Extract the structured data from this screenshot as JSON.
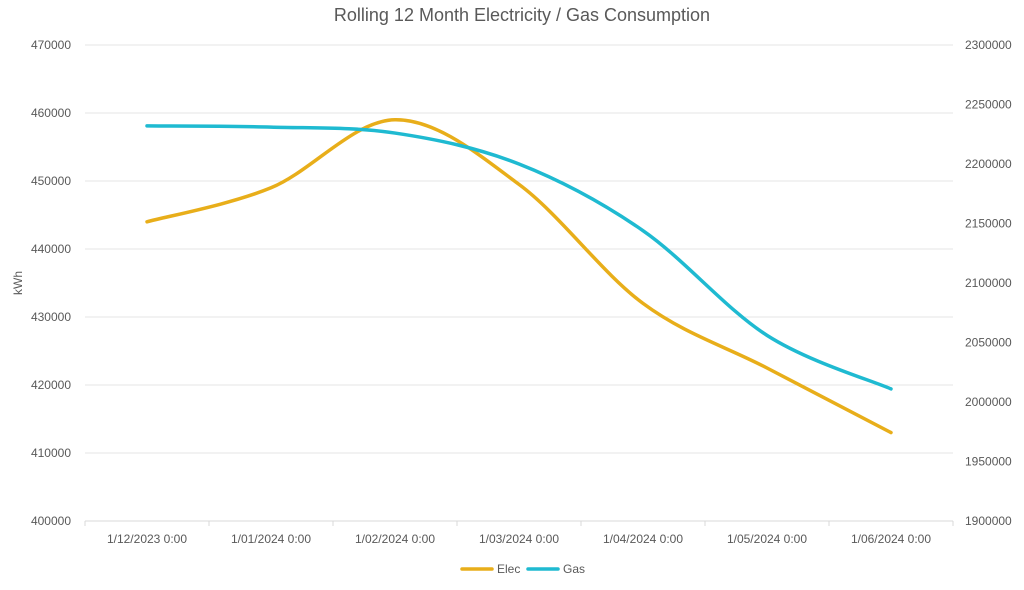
{
  "chart_data": {
    "type": "line",
    "title": "Rolling 12 Month Electricity / Gas Consumption",
    "ylabel": "kWh",
    "y2label": "",
    "categories": [
      "1/12/2023 0:00",
      "1/01/2024 0:00",
      "1/02/2024 0:00",
      "1/03/2024 0:00",
      "1/04/2024 0:00",
      "1/05/2024 0:00",
      "1/06/2024 0:00"
    ],
    "ylim": [
      400000,
      470000
    ],
    "yticks": [
      400000,
      410000,
      420000,
      430000,
      440000,
      450000,
      460000,
      470000
    ],
    "y2lim": [
      1900000,
      2300000
    ],
    "y2ticks": [
      1900000,
      1950000,
      2000000,
      2050000,
      2100000,
      2150000,
      2200000,
      2250000,
      2300000
    ],
    "grid": true,
    "legend": "bottom",
    "series": [
      {
        "name": "Elec",
        "axis": "left",
        "color": "#E8AE1A",
        "values": [
          444000,
          449000,
          459000,
          449500,
          432000,
          422500,
          413000
        ]
      },
      {
        "name": "Gas",
        "axis": "right",
        "color": "#1FBAD1",
        "values": [
          2232000,
          2231000,
          2226000,
          2200000,
          2144000,
          2056000,
          2011000
        ]
      }
    ]
  }
}
